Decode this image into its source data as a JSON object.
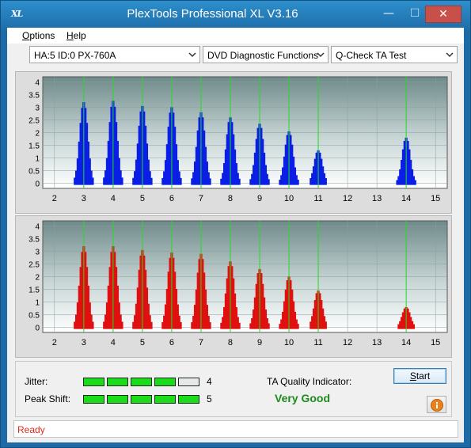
{
  "window": {
    "title": "PlexTools Professional XL V3.16",
    "icon_text": "XL"
  },
  "titlebar_buttons": {
    "minimize": "—",
    "maximize": "☐",
    "close": "✕"
  },
  "menu": [
    {
      "label": "Options"
    },
    {
      "label": "Help"
    }
  ],
  "toolbar": {
    "drive": "HA:5 ID:0  PX-760A",
    "function": "DVD Diagnostic Functions",
    "test": "Q-Check TA Test"
  },
  "chart_data": [
    {
      "type": "bar",
      "color": "#0a1ee6",
      "x_ticks": [
        2,
        3,
        4,
        5,
        6,
        7,
        8,
        9,
        10,
        11,
        12,
        13,
        14,
        15
      ],
      "y_ticks": [
        0,
        0.5,
        1,
        1.5,
        2,
        2.5,
        3,
        3.5,
        4
      ],
      "xlim": [
        1.6,
        15.4
      ],
      "ylim": [
        -0.2,
        4.2
      ],
      "peak_lines": [
        3,
        4,
        5,
        6,
        7,
        8,
        9,
        10,
        11,
        14
      ],
      "peaks": [
        {
          "center": 3.0,
          "height": 3.2
        },
        {
          "center": 4.0,
          "height": 3.25
        },
        {
          "center": 5.0,
          "height": 3.05
        },
        {
          "center": 6.0,
          "height": 3.0
        },
        {
          "center": 7.0,
          "height": 2.8
        },
        {
          "center": 8.0,
          "height": 2.6
        },
        {
          "center": 9.0,
          "height": 2.35
        },
        {
          "center": 10.0,
          "height": 2.05
        },
        {
          "center": 11.0,
          "height": 1.3
        },
        {
          "center": 14.0,
          "height": 1.8
        }
      ]
    },
    {
      "type": "bar",
      "color": "#e01010",
      "x_ticks": [
        2,
        3,
        4,
        5,
        6,
        7,
        8,
        9,
        10,
        11,
        12,
        13,
        14,
        15
      ],
      "y_ticks": [
        0,
        0.5,
        1,
        1.5,
        2,
        2.5,
        3,
        3.5,
        4
      ],
      "xlim": [
        1.6,
        15.4
      ],
      "ylim": [
        -0.2,
        4.2
      ],
      "peak_lines": [
        3,
        4,
        5,
        6,
        7,
        8,
        9,
        10,
        11,
        14
      ],
      "peaks": [
        {
          "center": 3.0,
          "height": 3.2
        },
        {
          "center": 4.0,
          "height": 3.2
        },
        {
          "center": 5.0,
          "height": 3.05
        },
        {
          "center": 6.0,
          "height": 2.95
        },
        {
          "center": 7.0,
          "height": 2.9
        },
        {
          "center": 8.0,
          "height": 2.6
        },
        {
          "center": 9.0,
          "height": 2.3
        },
        {
          "center": 10.0,
          "height": 2.0
        },
        {
          "center": 11.0,
          "height": 1.45
        },
        {
          "center": 14.0,
          "height": 0.8
        }
      ]
    }
  ],
  "jitter": {
    "label": "Jitter:",
    "value": "4",
    "filled": 4,
    "total": 5
  },
  "peak_shift": {
    "label": "Peak Shift:",
    "value": "5",
    "filled": 5,
    "total": 5
  },
  "ta_quality": {
    "label": "TA Quality Indicator:",
    "value": "Very Good"
  },
  "buttons": {
    "start": "Start"
  },
  "status": {
    "text": "Ready"
  },
  "colors": {
    "meter_on": "#1bdb1b",
    "meter_off": "#e8e8e8",
    "quality_text": "#1e8a1e",
    "status_text": "#e02a1c",
    "peak_line": "#22dd22"
  }
}
